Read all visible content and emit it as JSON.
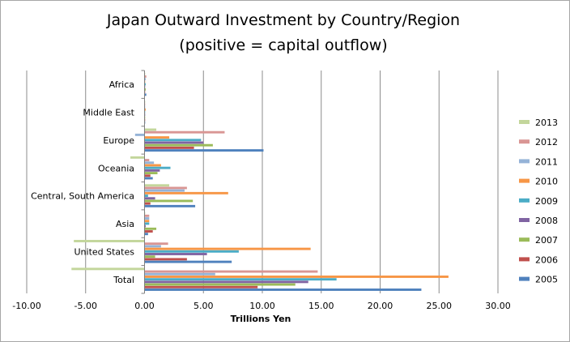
{
  "chart_data": {
    "type": "bar",
    "orientation": "horizontal",
    "title_line1": "Japan Outward Investment by Country/Region",
    "title_line2": "(positive = capital outflow)",
    "xlabel": "Trillions Yen",
    "ylabel": "",
    "xlim": [
      -10,
      30
    ],
    "x_ticks": [
      -10,
      -5,
      0,
      5,
      10,
      15,
      20,
      25,
      30
    ],
    "x_tick_labels": [
      "-10.00",
      "-5.00",
      "0.00",
      "5.00",
      "10.00",
      "15.00",
      "20.00",
      "25.00",
      "30.00"
    ],
    "grid": "vertical major gridlines",
    "legend_position": "right",
    "categories": [
      "Africa",
      "Middle East",
      "Europe",
      "Oceania",
      "Central, South America",
      "Asia",
      "United States",
      "Total"
    ],
    "series": [
      {
        "name": "2013",
        "color": "#c3d69b",
        "values": [
          0.05,
          0.02,
          1.0,
          -1.2,
          2.1,
          0.05,
          -6.0,
          -6.2
        ]
      },
      {
        "name": "2012",
        "color": "#d99694",
        "values": [
          0.15,
          0.05,
          6.8,
          0.4,
          3.6,
          0.4,
          2.0,
          14.7
        ]
      },
      {
        "name": "2011",
        "color": "#95b3d7",
        "values": [
          0.1,
          0.05,
          -0.8,
          0.8,
          3.4,
          0.4,
          1.4,
          6.0
        ]
      },
      {
        "name": "2010",
        "color": "#f79646",
        "values": [
          0.05,
          0.1,
          2.1,
          1.4,
          7.1,
          0.4,
          14.1,
          25.8
        ]
      },
      {
        "name": "2009",
        "color": "#4bacc6",
        "values": [
          0.1,
          0.05,
          4.8,
          2.2,
          0.3,
          0.4,
          8.0,
          16.3
        ]
      },
      {
        "name": "2008",
        "color": "#8064a2",
        "values": [
          0.05,
          0.05,
          5.0,
          1.3,
          0.9,
          0.1,
          5.3,
          13.9
        ]
      },
      {
        "name": "2007",
        "color": "#9bbb59",
        "values": [
          0.1,
          0.02,
          5.8,
          1.1,
          4.1,
          1.0,
          0.9,
          12.8
        ]
      },
      {
        "name": "2006",
        "color": "#c0504d",
        "values": [
          0.05,
          0.05,
          4.2,
          0.5,
          0.5,
          0.7,
          3.6,
          9.6
        ]
      },
      {
        "name": "2005",
        "color": "#4f81bd",
        "values": [
          0.15,
          0.05,
          10.1,
          0.7,
          4.3,
          0.3,
          7.4,
          23.5
        ]
      }
    ]
  }
}
